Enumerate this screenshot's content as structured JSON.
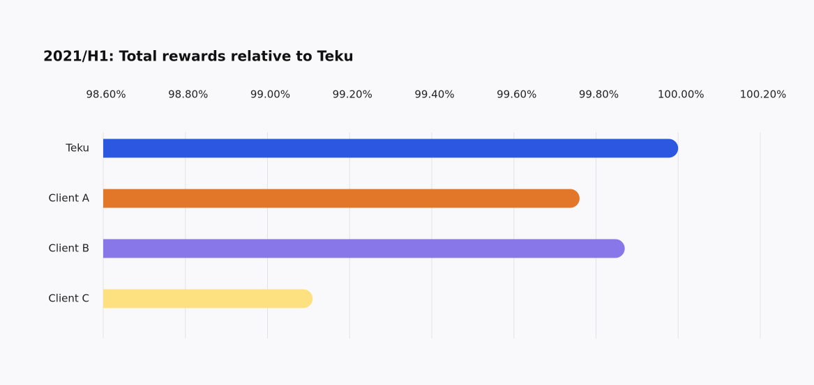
{
  "chart_data": {
    "type": "barh",
    "title": "2021/H1: Total rewards relative to Teku",
    "categories": [
      "Teku",
      "Client A",
      "Client B",
      "Client C"
    ],
    "values": [
      100.0,
      99.76,
      99.87,
      99.11
    ],
    "colors": [
      "#2c57e0",
      "#e2772a",
      "#8777e8",
      "#fde07f"
    ],
    "xlim": [
      98.6,
      100.2
    ],
    "xticks": [
      {
        "value": 98.6,
        "label": "98.60%"
      },
      {
        "value": 98.8,
        "label": "98.80%"
      },
      {
        "value": 99.0,
        "label": "99.00%"
      },
      {
        "value": 99.2,
        "label": "99.20%"
      },
      {
        "value": 99.4,
        "label": "99.40%"
      },
      {
        "value": 99.6,
        "label": "99.60%"
      },
      {
        "value": 99.8,
        "label": "99.80%"
      },
      {
        "value": 100.0,
        "label": "100.00%"
      },
      {
        "value": 100.2,
        "label": "100.20%"
      }
    ],
    "grid": true
  }
}
